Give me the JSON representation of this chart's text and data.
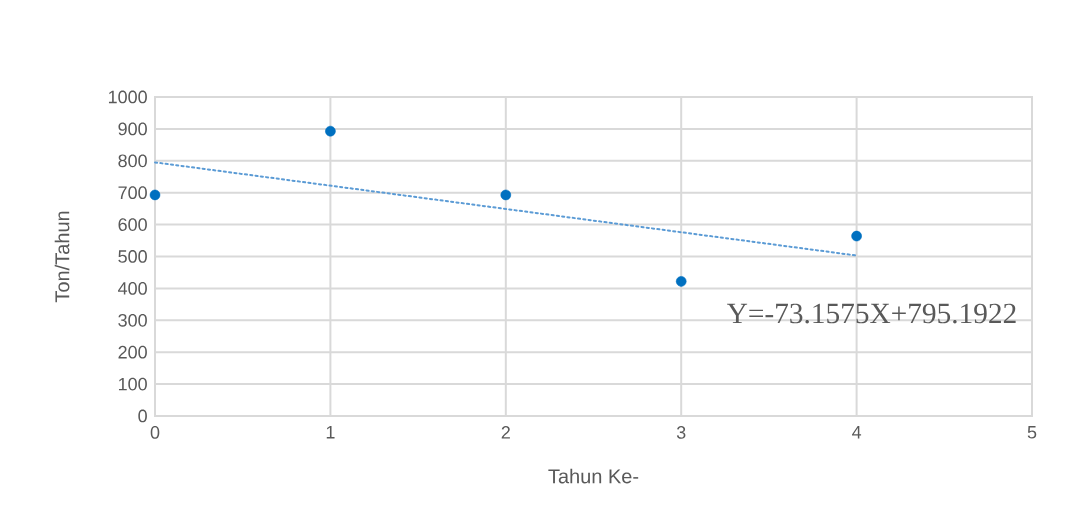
{
  "chart_data": {
    "type": "scatter",
    "xlabel": "Tahun Ke-",
    "ylabel": "Ton/Tahun",
    "x": [
      0,
      1,
      2,
      3,
      4
    ],
    "series": [
      {
        "color": "#0070c0",
        "marker": "circle",
        "values": [
          693,
          893,
          693,
          422,
          564
        ]
      },
      {
        "type": "line",
        "color": "#5b9bd5",
        "line_style": "dotted",
        "marker": "none",
        "x": [
          0,
          4
        ],
        "values": [
          795,
          503
        ]
      }
    ],
    "xlim": [
      0,
      5
    ],
    "xticks": [
      0,
      1,
      2,
      3,
      4,
      5
    ],
    "ylim": [
      0,
      1000
    ],
    "yticks": [
      0,
      100,
      200,
      300,
      400,
      500,
      600,
      700,
      800,
      900,
      1000
    ],
    "grid": true,
    "annotations": [
      "Y=-73.1575X+795.1922"
    ]
  }
}
